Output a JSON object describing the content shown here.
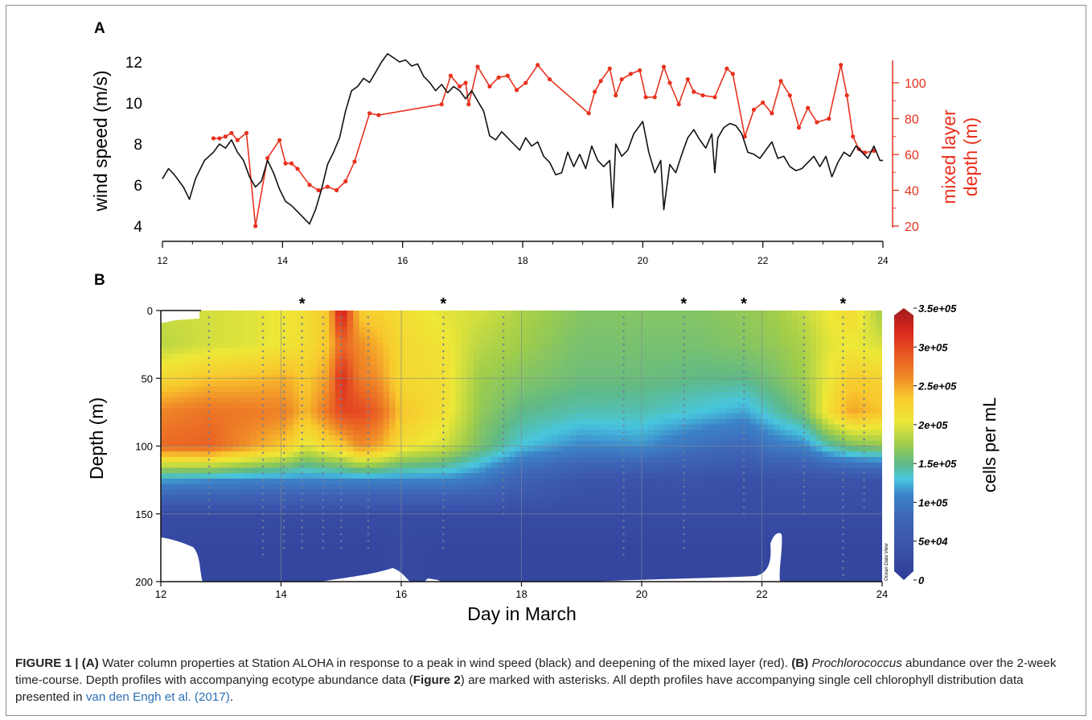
{
  "panel_a_label": "A",
  "panel_b_label": "B",
  "caption": {
    "fig_label": "FIGURE 1 | ",
    "a_label": "(A)",
    "a_text": " Water column properties at Station ALOHA in response to a peak in wind speed (black) and deepening of the mixed layer (red). ",
    "b_label": "(B)",
    "b_species": " Prochlorococcus",
    "b_text_1": " abundance over the 2-week time-course. Depth profiles with accompanying ecotype abundance data (",
    "fig2_ref": "Figure 2",
    "b_text_2": ") are marked with asterisks. All depth profiles have accompanying single cell chlorophyll distribution data presented in ",
    "citation": "van den Engh et al. (2017)",
    "end": "."
  },
  "colors": {
    "wind": "#111111",
    "mixed_layer": "#e8321e",
    "frame": "#8c8c8c"
  },
  "chart_data": [
    {
      "type": "line",
      "panel": "A",
      "xlabel": "",
      "ylabel": "wind speed (m/s)",
      "y2label_line1": "mixed layer",
      "y2label_line2": "depth (m)",
      "xlim": [
        12,
        24
      ],
      "ylim": [
        4,
        12.5
      ],
      "y2lim": [
        20,
        112
      ],
      "x_ticks": [
        12,
        14,
        16,
        18,
        20,
        22,
        24
      ],
      "y_ticks": [
        4,
        6,
        8,
        10,
        12
      ],
      "y2_ticks": [
        20,
        40,
        60,
        80,
        100
      ],
      "series": [
        {
          "name": "wind speed",
          "axis": "left",
          "color": "#111111",
          "x": [
            12.0,
            12.1,
            12.2,
            12.35,
            12.45,
            12.55,
            12.7,
            12.85,
            12.95,
            13.05,
            13.15,
            13.25,
            13.35,
            13.45,
            13.55,
            13.65,
            13.75,
            13.85,
            13.95,
            14.05,
            14.15,
            14.25,
            14.35,
            14.45,
            14.55,
            14.65,
            14.75,
            14.85,
            14.95,
            15.05,
            15.15,
            15.25,
            15.35,
            15.45,
            15.55,
            15.65,
            15.75,
            15.85,
            15.95,
            16.05,
            16.15,
            16.25,
            16.35,
            16.45,
            16.55,
            16.65,
            16.75,
            16.85,
            16.95,
            17.05,
            17.15,
            17.25,
            17.35,
            17.45,
            17.55,
            17.65,
            17.75,
            17.85,
            17.95,
            18.05,
            18.15,
            18.25,
            18.35,
            18.45,
            18.55,
            18.65,
            18.75,
            18.85,
            18.95,
            19.05,
            19.15,
            19.25,
            19.35,
            19.45,
            19.5,
            19.55,
            19.65,
            19.75,
            19.85,
            19.95,
            20.0,
            20.1,
            20.2,
            20.3,
            20.35,
            20.45,
            20.55,
            20.65,
            20.75,
            20.85,
            20.95,
            21.05,
            21.15,
            21.2,
            21.25,
            21.35,
            21.45,
            21.55,
            21.65,
            21.75,
            21.85,
            21.95,
            22.05,
            22.15,
            22.25,
            22.35,
            22.45,
            22.55,
            22.65,
            22.75,
            22.85,
            22.95,
            23.05,
            23.15,
            23.25,
            23.35,
            23.45,
            23.55,
            23.65,
            23.75,
            23.85,
            23.95,
            24.0
          ],
          "values": [
            6.3,
            6.8,
            6.5,
            5.9,
            5.3,
            6.3,
            7.2,
            7.6,
            8.0,
            7.8,
            8.2,
            7.6,
            7.2,
            6.4,
            5.9,
            6.2,
            7.2,
            6.6,
            5.8,
            5.2,
            5.0,
            4.7,
            4.4,
            4.1,
            4.8,
            5.8,
            7.0,
            7.6,
            8.3,
            9.6,
            10.6,
            10.8,
            11.2,
            11.0,
            11.5,
            12.0,
            12.4,
            12.2,
            12.0,
            12.1,
            11.8,
            11.9,
            11.3,
            11.0,
            10.6,
            10.9,
            10.5,
            10.8,
            10.6,
            10.2,
            10.6,
            10.1,
            9.6,
            8.4,
            8.2,
            8.6,
            8.3,
            8.0,
            7.7,
            8.3,
            7.9,
            8.1,
            7.4,
            7.1,
            6.5,
            6.6,
            7.6,
            6.9,
            7.5,
            6.8,
            7.9,
            7.2,
            6.9,
            7.2,
            4.9,
            8.0,
            7.4,
            7.7,
            8.5,
            8.9,
            9.1,
            7.6,
            6.6,
            7.2,
            4.8,
            7.0,
            6.6,
            7.5,
            8.3,
            8.7,
            8.2,
            7.8,
            8.5,
            6.6,
            8.3,
            8.8,
            9.0,
            8.9,
            8.5,
            7.6,
            7.5,
            7.3,
            7.7,
            8.1,
            7.3,
            7.4,
            6.9,
            6.7,
            6.8,
            7.1,
            7.4,
            6.9,
            7.4,
            6.4,
            7.1,
            7.6,
            7.4,
            7.9,
            7.6,
            7.3,
            7.9,
            7.2,
            7.2
          ]
        },
        {
          "name": "mixed layer depth",
          "axis": "right",
          "color": "#e8321e",
          "x": [
            12.85,
            12.95,
            13.05,
            13.15,
            13.25,
            13.4,
            13.55,
            13.75,
            13.95,
            14.05,
            14.15,
            14.25,
            14.45,
            14.6,
            14.75,
            14.9,
            15.05,
            15.2,
            15.45,
            15.6,
            16.65,
            16.8,
            16.95,
            17.05,
            17.1,
            17.25,
            17.45,
            17.6,
            17.75,
            17.9,
            18.05,
            18.25,
            18.45,
            19.1,
            19.2,
            19.3,
            19.45,
            19.55,
            19.65,
            19.8,
            19.95,
            20.05,
            20.2,
            20.35,
            20.45,
            20.6,
            20.75,
            20.85,
            21.0,
            21.2,
            21.4,
            21.5,
            21.7,
            21.85,
            22.0,
            22.15,
            22.3,
            22.45,
            22.6,
            22.75,
            22.9,
            23.1,
            23.3,
            23.4,
            23.5,
            23.6,
            23.7,
            23.85
          ],
          "values": [
            69,
            69,
            70,
            72,
            68,
            72,
            20,
            58,
            68,
            55,
            55,
            52,
            43,
            40,
            42,
            40,
            45,
            56,
            83,
            82,
            88,
            104,
            98,
            100,
            88,
            109,
            98,
            103,
            104,
            96,
            100,
            110,
            102,
            83,
            95,
            101,
            108,
            93,
            102,
            105,
            107,
            92,
            92,
            109,
            100,
            88,
            102,
            95,
            93,
            92,
            108,
            105,
            70,
            85,
            89,
            83,
            101,
            93,
            75,
            86,
            78,
            80,
            110,
            93,
            70,
            63,
            61,
            62
          ]
        }
      ]
    },
    {
      "type": "heatmap",
      "panel": "B",
      "xlabel": "Day in March",
      "ylabel": "Depth (m)",
      "xlim": [
        12,
        24
      ],
      "ylim": [
        200,
        0
      ],
      "x_ticks": [
        12,
        14,
        16,
        18,
        20,
        22,
        24
      ],
      "y_ticks": [
        0,
        50,
        100,
        150,
        200
      ],
      "colorbar_label": "cells per mL",
      "colorbar_ticks": [
        "0",
        "5e+04",
        "1e+05",
        "1.5e+05",
        "2e+05",
        "2.5e+05",
        "3e+05",
        "3.5e+05"
      ],
      "colorbar_range": [
        0,
        350000
      ],
      "watermark": "Ocean Data View",
      "asterisk_days": [
        14.35,
        16.7,
        20.7,
        21.7,
        23.35
      ],
      "profile_days": [
        12.8,
        13.7,
        14.05,
        14.35,
        14.7,
        15.0,
        15.45,
        16.7,
        17.7,
        19.7,
        20.7,
        21.7,
        22.7,
        23.35,
        23.7
      ],
      "profile_max_depth": [
        150,
        180,
        175,
        175,
        175,
        175,
        175,
        175,
        150,
        180,
        175,
        150,
        150,
        200,
        145
      ],
      "sample_interval_m": 5,
      "grid_x": [
        12.0,
        12.8,
        13.6,
        14.1,
        14.4,
        14.8,
        15.0,
        15.3,
        15.6,
        16.0,
        16.7,
        17.3,
        18.0,
        19.0,
        20.0,
        21.0,
        21.7,
        22.2,
        22.7,
        23.1,
        23.5,
        24.0
      ],
      "grid_depth": [
        0,
        25,
        50,
        75,
        100,
        125,
        150,
        175,
        200
      ],
      "abundance_cells_per_mL": [
        [
          190000,
          185000,
          220000,
          265000,
          280000,
          120000,
          30000,
          25000,
          25000
        ],
        [
          195000,
          195000,
          235000,
          275000,
          285000,
          115000,
          30000,
          20000,
          20000
        ],
        [
          200000,
          200000,
          240000,
          270000,
          250000,
          110000,
          30000,
          20000,
          20000
        ],
        [
          210000,
          210000,
          245000,
          265000,
          230000,
          110000,
          30000,
          20000,
          20000
        ],
        [
          215000,
          215000,
          230000,
          240000,
          200000,
          110000,
          30000,
          20000,
          20000
        ],
        [
          235000,
          235000,
          255000,
          275000,
          220000,
          110000,
          30000,
          20000,
          20000
        ],
        [
          340000,
          285000,
          320000,
          300000,
          230000,
          110000,
          30000,
          20000,
          20000
        ],
        [
          230000,
          260000,
          270000,
          300000,
          260000,
          110000,
          30000,
          20000,
          20000
        ],
        [
          225000,
          245000,
          260000,
          285000,
          250000,
          110000,
          30000,
          20000,
          20000
        ],
        [
          215000,
          220000,
          220000,
          235000,
          215000,
          110000,
          30000,
          25000,
          25000
        ],
        [
          200000,
          210000,
          215000,
          215000,
          195000,
          110000,
          30000,
          20000,
          20000
        ],
        [
          195000,
          185000,
          175000,
          170000,
          160000,
          100000,
          30000,
          20000,
          20000
        ],
        [
          180000,
          175000,
          165000,
          150000,
          130000,
          70000,
          30000,
          20000,
          20000
        ],
        [
          165000,
          160000,
          155000,
          140000,
          110000,
          45000,
          30000,
          20000,
          20000
        ],
        [
          165000,
          160000,
          155000,
          140000,
          115000,
          40000,
          30000,
          20000,
          20000
        ],
        [
          165000,
          160000,
          150000,
          130000,
          90000,
          40000,
          30000,
          20000,
          20000
        ],
        [
          170000,
          165000,
          150000,
          120000,
          80000,
          35000,
          30000,
          20000,
          20000
        ],
        [
          175000,
          170000,
          160000,
          140000,
          100000,
          40000,
          30000,
          20000,
          20000
        ],
        [
          190000,
          180000,
          175000,
          160000,
          110000,
          40000,
          30000,
          20000,
          20000
        ],
        [
          205000,
          200000,
          205000,
          215000,
          140000,
          40000,
          30000,
          20000,
          20000
        ],
        [
          220000,
          205000,
          230000,
          250000,
          160000,
          40000,
          30000,
          20000,
          20000
        ],
        [
          175000,
          195000,
          225000,
          235000,
          170000,
          40000,
          30000,
          20000,
          20000
        ]
      ]
    }
  ]
}
